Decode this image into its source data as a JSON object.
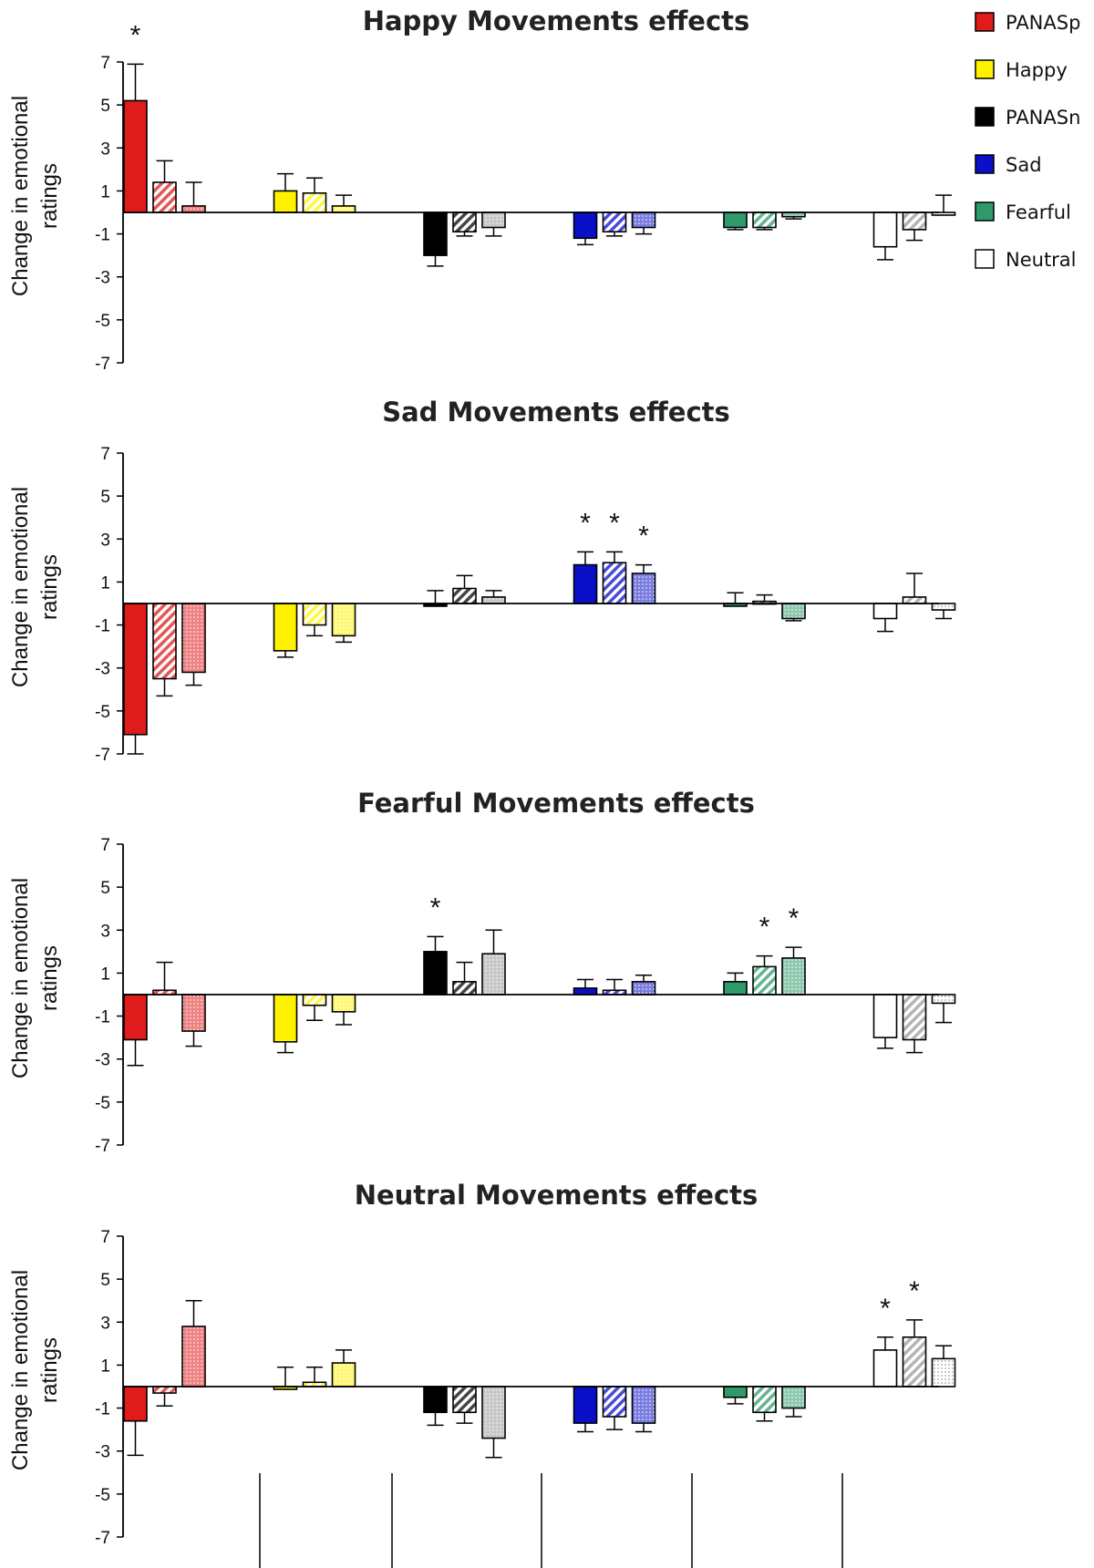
{
  "legend": [
    {
      "label": "PANASp",
      "color": "#e01b1b"
    },
    {
      "label": "Happy",
      "color": "#fff200"
    },
    {
      "label": "PANASn",
      "color": "#000000"
    },
    {
      "label": "Sad",
      "color": "#0a10c8"
    },
    {
      "label": "Fearful",
      "color": "#2e9a6a"
    },
    {
      "label": "Neutral",
      "color": "#ffffff"
    }
  ],
  "chart_data": [
    {
      "type": "bar",
      "title": "Happy Movements effects",
      "ylabel": "Change in emotional ratings",
      "ylim": [
        -7,
        7
      ],
      "yticks": [
        7,
        5,
        3,
        1,
        -1,
        -3,
        -5,
        -7
      ],
      "groups": [
        "PANASp",
        "Happy",
        "PANASn",
        "Sad",
        "Fearful",
        "Neutral"
      ],
      "series_patterns": [
        "solid",
        "striped",
        "dotted"
      ],
      "values": [
        [
          5.2,
          1.4,
          0.3
        ],
        [
          1.0,
          0.9,
          0.3
        ],
        [
          -2.0,
          -0.9,
          -0.7
        ],
        [
          -1.2,
          -0.9,
          -0.7
        ],
        [
          -0.7,
          -0.7,
          -0.2
        ],
        [
          -1.6,
          -0.8,
          0.0
        ]
      ],
      "errors": [
        [
          1.7,
          1.0,
          1.1
        ],
        [
          0.8,
          0.7,
          0.5
        ],
        [
          0.5,
          0.2,
          0.4
        ],
        [
          0.3,
          0.2,
          0.3
        ],
        [
          0.1,
          0.1,
          0.1
        ],
        [
          0.6,
          0.5,
          0.8
        ]
      ],
      "significant": [
        "*",
        "",
        "",
        "",
        "",
        "",
        "",
        "",
        "",
        "",
        "",
        "",
        "",
        "",
        "",
        "",
        "",
        ""
      ]
    },
    {
      "type": "bar",
      "title": "Sad Movements effects",
      "ylabel": "Change in emotional ratings",
      "ylim": [
        -7,
        7
      ],
      "yticks": [
        7,
        5,
        3,
        1,
        -1,
        -3,
        -5,
        -7
      ],
      "groups": [
        "PANASp",
        "Happy",
        "PANASn",
        "Sad",
        "Fearful",
        "Neutral"
      ],
      "series_patterns": [
        "solid",
        "striped",
        "dotted"
      ],
      "values": [
        [
          -6.1,
          -3.5,
          -3.2
        ],
        [
          -2.2,
          -1.0,
          -1.5
        ],
        [
          0.0,
          0.7,
          0.3
        ],
        [
          1.8,
          1.9,
          1.4
        ],
        [
          0.0,
          0.1,
          -0.7
        ],
        [
          -0.7,
          0.3,
          -0.3
        ]
      ],
      "errors": [
        [
          0.9,
          0.8,
          0.6
        ],
        [
          0.3,
          0.5,
          0.3
        ],
        [
          0.6,
          0.6,
          0.3
        ],
        [
          0.6,
          0.5,
          0.4
        ],
        [
          0.5,
          0.3,
          0.1
        ],
        [
          0.6,
          1.1,
          0.4
        ]
      ],
      "significant": [
        "",
        "",
        "",
        "",
        "",
        "",
        "",
        "",
        "",
        "*",
        "*",
        "*",
        "",
        "",
        "",
        "",
        "",
        ""
      ]
    },
    {
      "type": "bar",
      "title": "Fearful Movements effects",
      "ylabel": "Change in emotional ratings",
      "ylim": [
        -7,
        7
      ],
      "yticks": [
        7,
        5,
        3,
        1,
        -1,
        -3,
        -5,
        -7
      ],
      "groups": [
        "PANASp",
        "Happy",
        "PANASn",
        "Sad",
        "Fearful",
        "Neutral"
      ],
      "series_patterns": [
        "solid",
        "striped",
        "dotted"
      ],
      "values": [
        [
          -2.1,
          0.2,
          -1.7
        ],
        [
          -2.2,
          -0.5,
          -0.8
        ],
        [
          2.0,
          0.6,
          1.9
        ],
        [
          0.3,
          0.2,
          0.6
        ],
        [
          0.6,
          1.3,
          1.7
        ],
        [
          -2.0,
          -2.1,
          -0.4
        ]
      ],
      "errors": [
        [
          1.2,
          1.3,
          0.7
        ],
        [
          0.5,
          0.7,
          0.6
        ],
        [
          0.7,
          0.9,
          1.1
        ],
        [
          0.4,
          0.5,
          0.3
        ],
        [
          0.4,
          0.5,
          0.5
        ],
        [
          0.5,
          0.6,
          0.9
        ]
      ],
      "significant": [
        "",
        "",
        "",
        "",
        "",
        "",
        "*",
        "",
        "",
        "",
        "",
        "",
        "",
        "*",
        "*",
        "",
        "",
        ""
      ]
    },
    {
      "type": "bar",
      "title": "Neutral Movements effects",
      "ylabel": "Change in emotional ratings",
      "ylim": [
        -7,
        7
      ],
      "yticks": [
        7,
        5,
        3,
        1,
        -1,
        -3,
        -5,
        -7
      ],
      "groups": [
        "PANASp",
        "Happy",
        "PANASn",
        "Sad",
        "Fearful",
        "Neutral"
      ],
      "series_patterns": [
        "solid",
        "striped",
        "dotted"
      ],
      "values": [
        [
          -1.6,
          -0.3,
          2.8
        ],
        [
          0.0,
          0.2,
          1.1
        ],
        [
          -1.2,
          -1.2,
          -2.4
        ],
        [
          -1.7,
          -1.4,
          -1.7
        ],
        [
          -0.5,
          -1.2,
          -1.0
        ],
        [
          1.7,
          2.3,
          1.3
        ]
      ],
      "errors": [
        [
          1.6,
          0.6,
          1.2
        ],
        [
          0.9,
          0.7,
          0.6
        ],
        [
          0.6,
          0.5,
          0.9
        ],
        [
          0.4,
          0.6,
          0.4
        ],
        [
          0.3,
          0.4,
          0.4
        ],
        [
          0.6,
          0.8,
          0.6
        ]
      ],
      "significant": [
        "",
        "",
        "",
        "",
        "",
        "",
        "",
        "",
        "",
        "",
        "",
        "",
        "",
        "",
        "",
        "*",
        "*",
        ""
      ]
    }
  ]
}
